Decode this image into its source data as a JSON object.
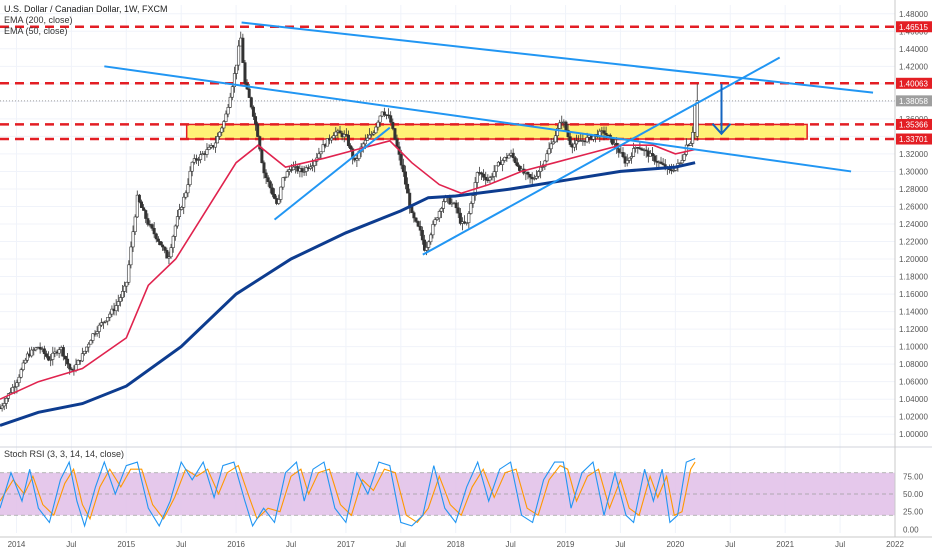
{
  "legend": {
    "title": "U.S. Dollar / Canadian Dollar, 1W, FXCM",
    "ema200": "EMA (200, close)",
    "ema50": "EMA (50, close)",
    "stoch": "Stoch RSI (3, 3, 14, 14, close)"
  },
  "colors": {
    "up": "#26a69a",
    "down": "#ef5350",
    "candle_body": "#333333",
    "ema50": "#e0234e",
    "ema200": "#0d3c8f",
    "trend": "#2196f3",
    "level": "#e31e24",
    "zone_fill": "#fff176",
    "stoch_k": "#2196f3",
    "stoch_d": "#ff9800",
    "stoch_band": "#e1bee7",
    "last_price_tag": "#9e9e9e",
    "arrow": "#1565c0"
  },
  "chart_data": {
    "type": "line",
    "title": "U.S. Dollar / Canadian Dollar, 1W, FXCM",
    "price_axis": {
      "ylim": [
        0.99,
        1.49
      ],
      "ticks": [
        "1.00000",
        "1.02000",
        "1.04000",
        "1.06000",
        "1.08000",
        "1.10000",
        "1.12000",
        "1.14000",
        "1.16000",
        "1.18000",
        "1.20000",
        "1.22000",
        "1.24000",
        "1.26000",
        "1.28000",
        "1.30000",
        "1.32000",
        "1.34000",
        "1.36000",
        "1.38000",
        "1.40000",
        "1.42000",
        "1.44000",
        "1.46000",
        "1.48000"
      ]
    },
    "time_axis": {
      "xlim": [
        2013.85,
        2022.0
      ],
      "ticks": [
        {
          "x": 2014.0,
          "label": "2014"
        },
        {
          "x": 2014.5,
          "label": "Jul"
        },
        {
          "x": 2015.0,
          "label": "2015"
        },
        {
          "x": 2015.5,
          "label": "Jul"
        },
        {
          "x": 2016.0,
          "label": "2016"
        },
        {
          "x": 2016.5,
          "label": "Jul"
        },
        {
          "x": 2017.0,
          "label": "2017"
        },
        {
          "x": 2017.5,
          "label": "Jul"
        },
        {
          "x": 2018.0,
          "label": "2018"
        },
        {
          "x": 2018.5,
          "label": "Jul"
        },
        {
          "x": 2019.0,
          "label": "2019"
        },
        {
          "x": 2019.5,
          "label": "Jul"
        },
        {
          "x": 2020.0,
          "label": "2020"
        },
        {
          "x": 2020.5,
          "label": "Jul"
        },
        {
          "x": 2021.0,
          "label": "2021"
        },
        {
          "x": 2021.5,
          "label": "Jul"
        },
        {
          "x": 2022.0,
          "label": "2022"
        }
      ]
    },
    "price_path": [
      [
        2013.85,
        1.03
      ],
      [
        2014.0,
        1.06
      ],
      [
        2014.1,
        1.09
      ],
      [
        2014.2,
        1.1
      ],
      [
        2014.3,
        1.085
      ],
      [
        2014.4,
        1.1
      ],
      [
        2014.5,
        1.07
      ],
      [
        2014.6,
        1.09
      ],
      [
        2014.7,
        1.115
      ],
      [
        2014.8,
        1.13
      ],
      [
        2014.9,
        1.145
      ],
      [
        2015.0,
        1.17
      ],
      [
        2015.05,
        1.22
      ],
      [
        2015.1,
        1.27
      ],
      [
        2015.2,
        1.24
      ],
      [
        2015.3,
        1.22
      ],
      [
        2015.38,
        1.2
      ],
      [
        2015.45,
        1.24
      ],
      [
        2015.55,
        1.28
      ],
      [
        2015.6,
        1.31
      ],
      [
        2015.7,
        1.32
      ],
      [
        2015.8,
        1.33
      ],
      [
        2015.9,
        1.36
      ],
      [
        2015.95,
        1.39
      ],
      [
        2016.0,
        1.42
      ],
      [
        2016.04,
        1.455
      ],
      [
        2016.08,
        1.4
      ],
      [
        2016.15,
        1.37
      ],
      [
        2016.2,
        1.34
      ],
      [
        2016.25,
        1.3
      ],
      [
        2016.3,
        1.285
      ],
      [
        2016.38,
        1.26
      ],
      [
        2016.42,
        1.29
      ],
      [
        2016.5,
        1.305
      ],
      [
        2016.6,
        1.3
      ],
      [
        2016.7,
        1.31
      ],
      [
        2016.8,
        1.33
      ],
      [
        2016.9,
        1.345
      ],
      [
        2017.0,
        1.34
      ],
      [
        2017.08,
        1.31
      ],
      [
        2017.15,
        1.33
      ],
      [
        2017.25,
        1.345
      ],
      [
        2017.33,
        1.37
      ],
      [
        2017.4,
        1.36
      ],
      [
        2017.46,
        1.33
      ],
      [
        2017.52,
        1.3
      ],
      [
        2017.6,
        1.25
      ],
      [
        2017.68,
        1.23
      ],
      [
        2017.72,
        1.21
      ],
      [
        2017.8,
        1.24
      ],
      [
        2017.9,
        1.27
      ],
      [
        2018.0,
        1.26
      ],
      [
        2018.05,
        1.24
      ],
      [
        2018.1,
        1.24
      ],
      [
        2018.2,
        1.3
      ],
      [
        2018.3,
        1.29
      ],
      [
        2018.4,
        1.31
      ],
      [
        2018.5,
        1.32
      ],
      [
        2018.6,
        1.3
      ],
      [
        2018.7,
        1.29
      ],
      [
        2018.8,
        1.31
      ],
      [
        2018.9,
        1.34
      ],
      [
        2018.97,
        1.36
      ],
      [
        2019.05,
        1.33
      ],
      [
        2019.15,
        1.335
      ],
      [
        2019.25,
        1.34
      ],
      [
        2019.35,
        1.345
      ],
      [
        2019.45,
        1.33
      ],
      [
        2019.5,
        1.32
      ],
      [
        2019.55,
        1.31
      ],
      [
        2019.65,
        1.33
      ],
      [
        2019.75,
        1.32
      ],
      [
        2019.85,
        1.31
      ],
      [
        2019.95,
        1.3
      ],
      [
        2020.0,
        1.305
      ],
      [
        2020.05,
        1.31
      ],
      [
        2020.1,
        1.33
      ],
      [
        2020.15,
        1.335
      ],
      [
        2020.18,
        1.38
      ]
    ],
    "ema50": [
      [
        2013.85,
        1.04
      ],
      [
        2014.2,
        1.06
      ],
      [
        2014.6,
        1.075
      ],
      [
        2015.0,
        1.11
      ],
      [
        2015.2,
        1.17
      ],
      [
        2015.45,
        1.2
      ],
      [
        2015.7,
        1.25
      ],
      [
        2016.0,
        1.31
      ],
      [
        2016.2,
        1.33
      ],
      [
        2016.45,
        1.305
      ],
      [
        2016.8,
        1.315
      ],
      [
        2017.1,
        1.325
      ],
      [
        2017.4,
        1.335
      ],
      [
        2017.6,
        1.31
      ],
      [
        2017.85,
        1.285
      ],
      [
        2018.05,
        1.275
      ],
      [
        2018.3,
        1.285
      ],
      [
        2018.6,
        1.3
      ],
      [
        2018.9,
        1.31
      ],
      [
        2019.2,
        1.32
      ],
      [
        2019.5,
        1.33
      ],
      [
        2019.8,
        1.33
      ],
      [
        2020.0,
        1.32
      ],
      [
        2020.18,
        1.325
      ]
    ],
    "ema200": [
      [
        2013.85,
        1.01
      ],
      [
        2014.2,
        1.025
      ],
      [
        2014.6,
        1.035
      ],
      [
        2015.0,
        1.055
      ],
      [
        2015.5,
        1.1
      ],
      [
        2016.0,
        1.16
      ],
      [
        2016.5,
        1.2
      ],
      [
        2017.0,
        1.23
      ],
      [
        2017.5,
        1.255
      ],
      [
        2017.75,
        1.27
      ],
      [
        2018.0,
        1.272
      ],
      [
        2018.5,
        1.28
      ],
      [
        2019.0,
        1.29
      ],
      [
        2019.5,
        1.3
      ],
      [
        2020.0,
        1.305
      ],
      [
        2020.18,
        1.31
      ]
    ],
    "horizontal_levels": [
      {
        "price": 1.46515,
        "label": "1.46515"
      },
      {
        "price": 1.40063,
        "label": "1.40063"
      },
      {
        "price": 1.35366,
        "label": "1.35366"
      },
      {
        "price": 1.33701,
        "label": "1.33701"
      }
    ],
    "zone": {
      "from": 1.33701,
      "to": 1.35366,
      "x_start": 2015.55,
      "x_end": 2021.2
    },
    "last_price": {
      "price": 1.38058,
      "label": "1.38058"
    },
    "trendlines": [
      {
        "x1": 2016.05,
        "y1": 1.47,
        "x2": 2021.8,
        "y2": 1.39
      },
      {
        "x1": 2014.8,
        "y1": 1.42,
        "x2": 2021.6,
        "y2": 1.3
      },
      {
        "x1": 2016.35,
        "y1": 1.245,
        "x2": 2017.4,
        "y2": 1.35
      },
      {
        "x1": 2017.7,
        "y1": 1.205,
        "x2": 2020.95,
        "y2": 1.43
      }
    ],
    "arrow": {
      "x1": 2020.42,
      "y1": 1.4,
      "x2": 2020.42,
      "y2": 1.343
    },
    "oscillator": {
      "ylim": [
        -5,
        105
      ],
      "ticks": [
        "0.00",
        "25.00",
        "50.00",
        "75.00"
      ],
      "band": [
        20,
        80
      ],
      "k": [
        [
          2013.85,
          30
        ],
        [
          2013.95,
          80
        ],
        [
          2014.05,
          40
        ],
        [
          2014.12,
          85
        ],
        [
          2014.2,
          30
        ],
        [
          2014.3,
          10
        ],
        [
          2014.4,
          70
        ],
        [
          2014.48,
          95
        ],
        [
          2014.55,
          40
        ],
        [
          2014.62,
          5
        ],
        [
          2014.72,
          60
        ],
        [
          2014.8,
          95
        ],
        [
          2014.9,
          50
        ],
        [
          2015.0,
          90
        ],
        [
          2015.1,
          95
        ],
        [
          2015.2,
          30
        ],
        [
          2015.3,
          5
        ],
        [
          2015.4,
          40
        ],
        [
          2015.5,
          95
        ],
        [
          2015.6,
          70
        ],
        [
          2015.7,
          95
        ],
        [
          2015.8,
          45
        ],
        [
          2015.88,
          90
        ],
        [
          2015.98,
          95
        ],
        [
          2016.08,
          40
        ],
        [
          2016.15,
          5
        ],
        [
          2016.25,
          30
        ],
        [
          2016.35,
          10
        ],
        [
          2016.45,
          80
        ],
        [
          2016.55,
          95
        ],
        [
          2016.62,
          40
        ],
        [
          2016.7,
          85
        ],
        [
          2016.8,
          95
        ],
        [
          2016.9,
          30
        ],
        [
          2017.0,
          10
        ],
        [
          2017.1,
          80
        ],
        [
          2017.2,
          50
        ],
        [
          2017.3,
          95
        ],
        [
          2017.4,
          90
        ],
        [
          2017.5,
          10
        ],
        [
          2017.6,
          5
        ],
        [
          2017.7,
          20
        ],
        [
          2017.8,
          90
        ],
        [
          2017.9,
          30
        ],
        [
          2018.0,
          10
        ],
        [
          2018.1,
          60
        ],
        [
          2018.2,
          95
        ],
        [
          2018.3,
          40
        ],
        [
          2018.4,
          85
        ],
        [
          2018.5,
          95
        ],
        [
          2018.6,
          20
        ],
        [
          2018.7,
          10
        ],
        [
          2018.8,
          70
        ],
        [
          2018.9,
          95
        ],
        [
          2018.98,
          95
        ],
        [
          2019.05,
          30
        ],
        [
          2019.15,
          80
        ],
        [
          2019.25,
          95
        ],
        [
          2019.35,
          20
        ],
        [
          2019.45,
          80
        ],
        [
          2019.55,
          20
        ],
        [
          2019.62,
          10
        ],
        [
          2019.72,
          85
        ],
        [
          2019.8,
          40
        ],
        [
          2019.88,
          85
        ],
        [
          2019.95,
          10
        ],
        [
          2020.02,
          20
        ],
        [
          2020.1,
          95
        ],
        [
          2020.18,
          100
        ]
      ],
      "d": [
        [
          2013.85,
          40
        ],
        [
          2013.97,
          70
        ],
        [
          2014.07,
          50
        ],
        [
          2014.15,
          75
        ],
        [
          2014.24,
          35
        ],
        [
          2014.34,
          20
        ],
        [
          2014.44,
          65
        ],
        [
          2014.52,
          85
        ],
        [
          2014.6,
          35
        ],
        [
          2014.67,
          15
        ],
        [
          2014.76,
          60
        ],
        [
          2014.85,
          85
        ],
        [
          2014.95,
          60
        ],
        [
          2015.04,
          85
        ],
        [
          2015.14,
          85
        ],
        [
          2015.24,
          35
        ],
        [
          2015.34,
          15
        ],
        [
          2015.44,
          45
        ],
        [
          2015.54,
          85
        ],
        [
          2015.64,
          75
        ],
        [
          2015.74,
          85
        ],
        [
          2015.84,
          50
        ],
        [
          2015.92,
          80
        ],
        [
          2016.02,
          90
        ],
        [
          2016.12,
          45
        ],
        [
          2016.19,
          15
        ],
        [
          2016.29,
          30
        ],
        [
          2016.4,
          25
        ],
        [
          2016.5,
          75
        ],
        [
          2016.59,
          85
        ],
        [
          2016.66,
          50
        ],
        [
          2016.75,
          80
        ],
        [
          2016.85,
          85
        ],
        [
          2016.95,
          35
        ],
        [
          2017.05,
          20
        ],
        [
          2017.15,
          70
        ],
        [
          2017.25,
          55
        ],
        [
          2017.35,
          85
        ],
        [
          2017.45,
          80
        ],
        [
          2017.55,
          20
        ],
        [
          2017.65,
          10
        ],
        [
          2017.75,
          30
        ],
        [
          2017.85,
          75
        ],
        [
          2017.95,
          35
        ],
        [
          2018.05,
          20
        ],
        [
          2018.15,
          60
        ],
        [
          2018.25,
          85
        ],
        [
          2018.35,
          45
        ],
        [
          2018.45,
          80
        ],
        [
          2018.55,
          85
        ],
        [
          2018.65,
          30
        ],
        [
          2018.75,
          20
        ],
        [
          2018.85,
          70
        ],
        [
          2018.95,
          90
        ],
        [
          2019.02,
          85
        ],
        [
          2019.1,
          40
        ],
        [
          2019.2,
          75
        ],
        [
          2019.3,
          85
        ],
        [
          2019.4,
          30
        ],
        [
          2019.5,
          70
        ],
        [
          2019.58,
          30
        ],
        [
          2019.67,
          20
        ],
        [
          2019.77,
          75
        ],
        [
          2019.84,
          45
        ],
        [
          2019.92,
          75
        ],
        [
          2019.99,
          20
        ],
        [
          2020.06,
          25
        ],
        [
          2020.14,
          85
        ],
        [
          2020.18,
          95
        ]
      ]
    }
  }
}
